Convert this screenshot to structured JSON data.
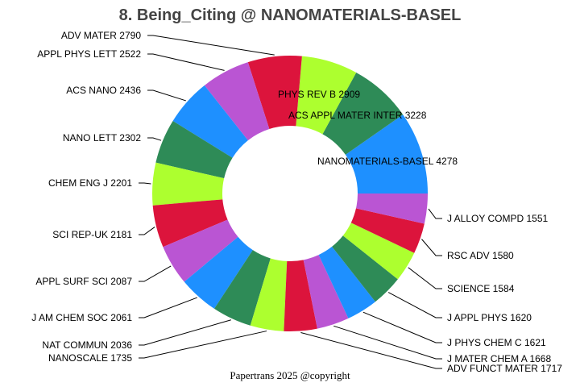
{
  "chart_data": {
    "type": "pie",
    "donut": true,
    "title": "8. Being_Citing @ NANOMATERIALS-BASEL",
    "footer": "Papertrans 2025 @copyright",
    "direction": "counterclockwise from 3 o'clock",
    "colors": [
      "#1e90ff",
      "#2e8b57",
      "#adff2f",
      "#dc143c",
      "#ba55d3"
    ],
    "slices": [
      {
        "label": "NANOMATERIALS-BASEL",
        "value": 4278
      },
      {
        "label": "ACS APPL MATER INTER",
        "value": 3228
      },
      {
        "label": "PHYS REV B",
        "value": 2909
      },
      {
        "label": "ADV MATER",
        "value": 2790
      },
      {
        "label": "APPL PHYS LETT",
        "value": 2522
      },
      {
        "label": "ACS NANO",
        "value": 2436
      },
      {
        "label": "NANO LETT",
        "value": 2302
      },
      {
        "label": "CHEM ENG J",
        "value": 2201
      },
      {
        "label": "SCI REP-UK",
        "value": 2181
      },
      {
        "label": "APPL SURF SCI",
        "value": 2087
      },
      {
        "label": "J AM CHEM SOC",
        "value": 2061
      },
      {
        "label": "NAT COMMUN",
        "value": 2036
      },
      {
        "label": "NANOSCALE",
        "value": 1735
      },
      {
        "label": "ADV FUNCT MATER",
        "value": 1717
      },
      {
        "label": "J MATER CHEM A",
        "value": 1668
      },
      {
        "label": "J PHYS CHEM C",
        "value": 1621
      },
      {
        "label": "J APPL PHYS",
        "value": 1620
      },
      {
        "label": "SCIENCE",
        "value": 1584
      },
      {
        "label": "RSC ADV",
        "value": 1580
      },
      {
        "label": "J ALLOY COMPD",
        "value": 1551
      }
    ]
  }
}
